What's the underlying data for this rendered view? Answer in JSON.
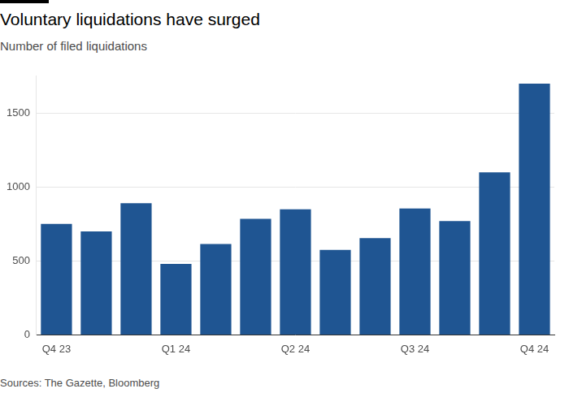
{
  "chart_data": {
    "type": "bar",
    "title": "Voluntary liquidations have surged",
    "subtitle": "Number of filed liquidations",
    "source": "Sources: The Gazette, Bloomberg",
    "categories": [
      "Q4 23",
      null,
      null,
      "Q1 24",
      null,
      null,
      "Q2 24",
      null,
      null,
      "Q3 24",
      null,
      null,
      "Q4 24"
    ],
    "values": [
      750,
      700,
      890,
      480,
      615,
      785,
      850,
      575,
      655,
      855,
      770,
      1100,
      1700
    ],
    "color": "#1f5592",
    "ylim": [
      0,
      1750
    ],
    "yticks": [
      0,
      500,
      1000,
      1500
    ],
    "grid": true
  }
}
